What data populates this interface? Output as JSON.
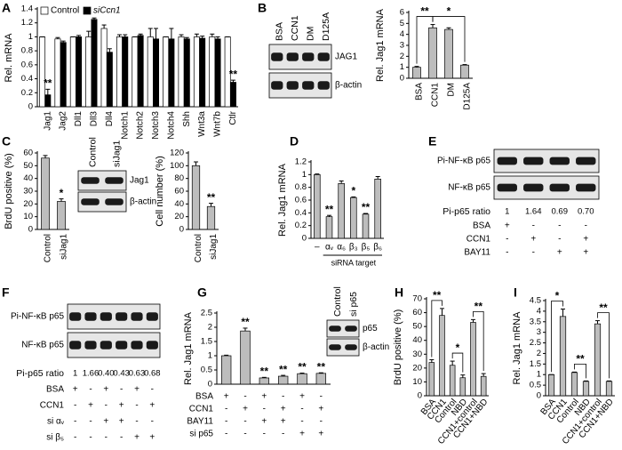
{
  "chart_data": [
    {
      "type": "bar",
      "panel": "A",
      "ylabel": "Rel. mRNA",
      "categories": [
        "Jag1",
        "Jag2",
        "Dll1",
        "Dll3",
        "Dll4",
        "Notch1",
        "Notch2",
        "Notch3",
        "Notch4",
        "Shh",
        "Wnt3a",
        "Wnt7b",
        "Ctlr"
      ],
      "series": [
        {
          "name": "Control",
          "color": "#ffffff",
          "values": [
            1,
            0.97,
            1,
            1,
            1.12,
            1,
            1,
            1,
            1,
            1,
            1,
            1,
            1
          ],
          "errors": [
            0,
            0.02,
            0,
            0.08,
            0.05,
            0.03,
            0,
            0.12,
            0,
            0.03,
            0.04,
            0.04,
            0
          ]
        },
        {
          "name": "siCcn1",
          "color": "#000000",
          "values": [
            0.17,
            0.92,
            1,
            1.25,
            0.78,
            1,
            1.02,
            0.97,
            0.97,
            0.97,
            0.98,
            0.97,
            0.35
          ],
          "errors": [
            0.08,
            0.02,
            0.02,
            0.02,
            0.05,
            0.03,
            0.02,
            0.15,
            0.15,
            0.02,
            0.03,
            0.03,
            0.03
          ],
          "annotations": [
            "**",
            null,
            null,
            null,
            null,
            null,
            null,
            null,
            null,
            null,
            null,
            null,
            "**"
          ]
        }
      ],
      "ylim": [
        0,
        1.4
      ],
      "yticks": [
        0,
        0.2,
        0.4,
        0.6,
        0.8,
        1,
        1.2,
        1.4
      ]
    },
    {
      "type": "bar",
      "panel": "B",
      "ylabel": "Rel. Jag1 mRNA",
      "categories": [
        "BSA",
        "CCN1",
        "DM",
        "D125A"
      ],
      "values": [
        1,
        4.6,
        4.45,
        1.2
      ],
      "errors": [
        0.08,
        0.3,
        0.15,
        0.05
      ],
      "color": "#bdbdbd",
      "ylim": [
        0,
        6
      ],
      "yticks": [
        0,
        1,
        2,
        3,
        4,
        5,
        6
      ],
      "brackets": [
        {
          "label": "**",
          "from": "BSA",
          "to": "CCN1"
        },
        {
          "label": "*",
          "from": "CCN1",
          "to": "D125A"
        }
      ]
    },
    {
      "type": "bar",
      "panel": "C",
      "ylabel": "BrdU positive (%)",
      "categories": [
        "Control",
        "siJag1"
      ],
      "values": [
        56,
        22
      ],
      "errors": [
        2,
        2
      ],
      "color": "#bdbdbd",
      "annotations": [
        null,
        "*"
      ],
      "ylim": [
        0,
        60
      ],
      "yticks": [
        0,
        10,
        20,
        30,
        40,
        50,
        60
      ]
    },
    {
      "type": "bar",
      "ylabel": "Cell number (%)",
      "categories": [
        "Control",
        "siJag1"
      ],
      "values": [
        100,
        36
      ],
      "errors": [
        6,
        5
      ],
      "color": "#bdbdbd",
      "annotations": [
        null,
        "**"
      ],
      "ylim": [
        0,
        120
      ],
      "yticks": [
        0,
        20,
        40,
        60,
        80,
        100,
        120
      ]
    },
    {
      "type": "bar",
      "panel": "D",
      "ylabel": "Rel. Jag1 mRNA",
      "xlabel": "siRNA target",
      "categories": [
        "–",
        "αᵥ",
        "α₆",
        "β₃",
        "β₅",
        "β₆"
      ],
      "values": [
        1,
        0.34,
        0.86,
        0.64,
        0.38,
        0.93
      ],
      "errors": [
        0.01,
        0.02,
        0.04,
        0.01,
        0.01,
        0.04
      ],
      "color": "#bdbdbd",
      "annotations": [
        null,
        "**",
        null,
        "*",
        "**",
        null
      ],
      "ylim": [
        0,
        1.2
      ],
      "yticks": [
        0,
        0.2,
        0.4,
        0.6,
        0.8,
        1,
        1.2
      ]
    },
    {
      "type": "bar",
      "panel": "G",
      "ylabel": "Rel. Jag1 mRNA",
      "values": [
        1,
        1.87,
        0.22,
        0.28,
        0.37,
        0.38
      ],
      "errors": [
        0.02,
        0.1,
        0.02,
        0.03,
        0.02,
        0.02
      ],
      "color": "#bdbdbd",
      "annotations": [
        null,
        "**",
        "**",
        "**",
        "**",
        "**"
      ],
      "ylim": [
        0,
        2.5
      ],
      "yticks": [
        0,
        0.5,
        1,
        1.5,
        2,
        2.5
      ],
      "conditions": [
        {
          "name": "BSA",
          "marks": [
            "+",
            "-",
            "+",
            "-",
            "+",
            "-"
          ]
        },
        {
          "name": "CCN1",
          "marks": [
            "-",
            "+",
            "-",
            "+",
            "-",
            "+"
          ]
        },
        {
          "name": "BAY11",
          "marks": [
            "-",
            "-",
            "+",
            "+",
            "-",
            "-"
          ]
        },
        {
          "name": "si p65",
          "marks": [
            "-",
            "-",
            "-",
            "-",
            "+",
            "+"
          ]
        }
      ]
    },
    {
      "type": "bar",
      "panel": "H",
      "ylabel": "BrdU positive (%)",
      "categories": [
        "BSA",
        "CCN1",
        "Control",
        "NBD",
        "CCN1+control",
        "CCN1+NBD"
      ],
      "values": [
        24,
        58,
        22,
        13,
        53,
        14
      ],
      "errors": [
        2,
        5,
        3,
        2,
        2,
        2
      ],
      "color": "#bdbdbd",
      "ylim": [
        0,
        70
      ],
      "yticks": [
        0,
        10,
        20,
        30,
        40,
        50,
        60,
        70
      ],
      "brackets": [
        {
          "label": "**",
          "from": "BSA",
          "to": "CCN1"
        },
        {
          "label": "*",
          "from": "Control",
          "to": "NBD"
        },
        {
          "label": "**",
          "from": "CCN1+control",
          "to": "CCN1+NBD"
        }
      ]
    },
    {
      "type": "bar",
      "panel": "I",
      "ylabel": "Rel. Jag1 mRNA",
      "categories": [
        "BSA",
        "CCN1",
        "Control",
        "NBD",
        "CCN1+control",
        "CCN1+NBD"
      ],
      "values": [
        1,
        3.75,
        1.1,
        0.68,
        3.4,
        0.68
      ],
      "errors": [
        0,
        0.35,
        0.02,
        0.02,
        0.15,
        0.02
      ],
      "color": "#bdbdbd",
      "ylim": [
        0,
        4.5
      ],
      "yticks": [
        0,
        0.5,
        1,
        1.5,
        2,
        2.5,
        3,
        3.5,
        4,
        4.5
      ],
      "brackets": [
        {
          "label": "*",
          "from": "BSA",
          "to": "CCN1"
        },
        {
          "label": "**",
          "from": "Control",
          "to": "NBD"
        },
        {
          "label": "**",
          "from": "CCN1+control",
          "to": "CCN1+NBD"
        }
      ]
    }
  ],
  "blots": [
    {
      "lanes": [
        "BSA",
        "CCN1",
        "DM",
        "D125A"
      ],
      "rows": [
        "JAG1",
        "β-actin"
      ]
    },
    {
      "lanes": [
        "Control",
        "siJag1"
      ],
      "rows": [
        "Jag1",
        "β-actin"
      ]
    },
    {
      "panel": "E",
      "rows": [
        "Pi-NF-κB p65",
        "NF-κB p65"
      ],
      "ratio_label": "Pi-p65 ratio",
      "ratios": [
        1,
        1.64,
        0.69,
        {
          "value": 0.7,
          "label": "0.70"
        }
      ],
      "conditions": [
        {
          "name": "BSA",
          "marks": [
            "+",
            "-",
            "-",
            "-"
          ]
        },
        {
          "name": "CCN1",
          "marks": [
            "-",
            "+",
            "-",
            "+"
          ]
        },
        {
          "name": "BAY11",
          "marks": [
            "-",
            "-",
            "+",
            "+"
          ]
        }
      ]
    },
    {
      "panel": "F",
      "rows": [
        "Pi-NF-κB p65",
        "NF-κB p65"
      ],
      "ratio_label": "Pi-p65 ratio",
      "ratios": [
        1,
        1.66,
        {
          "value": 0.4,
          "label": "0.40"
        },
        0.43,
        0.63,
        0.68
      ],
      "conditions": [
        {
          "name": "BSA",
          "marks": [
            "+",
            "-",
            "+",
            "-",
            "+",
            "-"
          ]
        },
        {
          "name": "CCN1",
          "marks": [
            "-",
            "+",
            "-",
            "+",
            "-",
            "+"
          ]
        },
        {
          "name": "si αᵥ",
          "marks": [
            "-",
            "-",
            "+",
            "+",
            "-",
            "-"
          ]
        },
        {
          "name": "si β₅",
          "marks": [
            "-",
            "-",
            "-",
            "-",
            "+",
            "+"
          ]
        }
      ]
    },
    {
      "lanes": [
        "Control",
        "si p65"
      ],
      "rows": [
        "p65",
        "β-actin"
      ]
    }
  ]
}
